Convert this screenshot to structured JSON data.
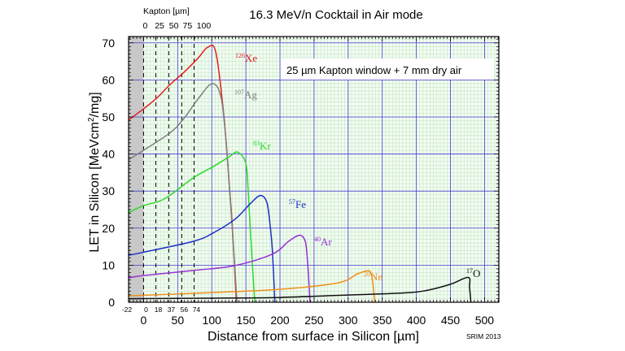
{
  "chart_data": {
    "type": "line",
    "title": "16.3 MeV/n Cocktail in Air mode",
    "xlabel": "Distance from surface in Silicon [µm]",
    "ylabel": "LET in Silicon [MeVcm²/mg]",
    "ylabel_parts": {
      "pre": "LET in Silicon [MeVcm",
      "sup": "2",
      "post": "/mg]"
    },
    "xlim": [
      -22,
      521
    ],
    "ylim": [
      0,
      71.7
    ],
    "grid": true,
    "xticks": [
      0,
      50,
      100,
      150,
      200,
      250,
      300,
      350,
      400,
      450,
      500
    ],
    "yticks": [
      0,
      10,
      20,
      30,
      40,
      50,
      60,
      70
    ],
    "kapton_depth_ticks": [
      -22,
      0,
      18,
      37,
      56,
      74
    ],
    "kapton_axis": {
      "label": "Kapton [µm]",
      "ticks": [
        {
          "label": "0",
          "si_depth": 0
        },
        {
          "label": "25",
          "si_depth": 21
        },
        {
          "label": "50",
          "si_depth": 42
        },
        {
          "label": "75",
          "si_depth": 62
        },
        {
          "label": "100",
          "si_depth": 86
        }
      ]
    },
    "annotation": "25 µm Kapton window + 7 mm dry air",
    "watermark": "SRIM 2013",
    "colors": {
      "grid_major": "#3c3cc8",
      "grid_minor": "#bfe8bf",
      "kapton_region": "#c8c8c8",
      "plot_bg": "#f4fbf4"
    },
    "series": [
      {
        "mass": "126",
        "element": "Xe",
        "color": "#e41e1e",
        "x": [
          -22,
          0,
          20,
          38,
          60,
          80,
          94,
          106,
          118,
          126,
          130,
          136
        ],
        "y": [
          49.2,
          52.2,
          55.2,
          58.6,
          62.2,
          65.9,
          68.8,
          67.4,
          49.8,
          30.8,
          20.9,
          0
        ]
      },
      {
        "mass": "107",
        "element": "Ag",
        "color": "#7f7f7f",
        "x": [
          -22,
          0,
          40,
          60,
          80,
          101,
          114,
          122,
          130,
          137
        ],
        "y": [
          38.5,
          41.0,
          45.9,
          49.8,
          54.9,
          59.0,
          54.9,
          41.0,
          20,
          0
        ]
      },
      {
        "mass": "83",
        "element": "Kr",
        "color": "#2ed82e",
        "x": [
          -22,
          0,
          30.6,
          74,
          102,
          125,
          138,
          150,
          153.6,
          158,
          163
        ],
        "y": [
          24.2,
          26.1,
          27.9,
          33.7,
          36.6,
          39.2,
          40.5,
          37.4,
          29.4,
          15,
          0
        ]
      },
      {
        "mass": "57",
        "element": "Fe",
        "color": "#1c2fc4",
        "x": [
          -22,
          0,
          74,
          102,
          134,
          157.5,
          171.4,
          181,
          186,
          189,
          192.5
        ],
        "y": [
          12.7,
          13.5,
          16.5,
          18.7,
          22.4,
          26.8,
          28.8,
          26.8,
          20,
          13.6,
          0
        ]
      },
      {
        "mass": "40",
        "element": "Ar",
        "color": "#9430d4",
        "x": [
          -22,
          0,
          74,
          134,
          189,
          213,
          229,
          237,
          240,
          241.7,
          244
        ],
        "y": [
          6.6,
          7.2,
          8.6,
          9.9,
          13.0,
          16.5,
          18.1,
          16.5,
          12,
          7.7,
          0
        ]
      },
      {
        "mass": "20",
        "element": "Ne",
        "color": "#f0901c",
        "x": [
          -22,
          0,
          100,
          200,
          284.5,
          314,
          330,
          334,
          336,
          339
        ],
        "y": [
          1.75,
          1.9,
          2.6,
          3.5,
          5.2,
          7.7,
          8.5,
          7.5,
          5.6,
          0
        ]
      },
      {
        "mass": "17",
        "element": "O",
        "color": "#111111",
        "x": [
          -22,
          100,
          200,
          290,
          370,
          409.5,
          449,
          476,
          478,
          480
        ],
        "y": [
          0.95,
          1.1,
          1.3,
          1.9,
          2.4,
          3.0,
          4.8,
          6.7,
          4,
          0
        ]
      }
    ]
  }
}
